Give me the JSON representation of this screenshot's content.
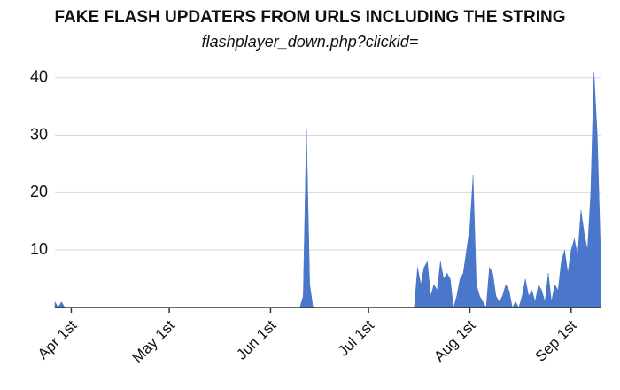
{
  "chart_data": {
    "type": "area",
    "title": "FAKE FLASH UPDATERS FROM URLS INCLUDING THE STRING",
    "subtitle": "flashplayer_down.php?clickid=",
    "color": "#4a77c9",
    "grid": true,
    "ylim": [
      0,
      41.5
    ],
    "yticks": [
      10,
      20,
      30,
      40
    ],
    "categories": [
      null,
      null,
      null,
      null,
      null,
      "Apr 1st",
      null,
      null,
      null,
      null,
      null,
      null,
      null,
      null,
      null,
      null,
      null,
      null,
      null,
      null,
      null,
      null,
      null,
      null,
      null,
      null,
      null,
      null,
      null,
      null,
      null,
      null,
      null,
      null,
      null,
      "May 1st",
      null,
      null,
      null,
      null,
      null,
      null,
      null,
      null,
      null,
      null,
      null,
      null,
      null,
      null,
      null,
      null,
      null,
      null,
      null,
      null,
      null,
      null,
      null,
      null,
      null,
      null,
      null,
      null,
      null,
      null,
      "Jun 1st",
      null,
      null,
      null,
      null,
      null,
      null,
      null,
      null,
      null,
      null,
      null,
      null,
      null,
      null,
      null,
      null,
      null,
      null,
      null,
      null,
      null,
      null,
      null,
      null,
      null,
      null,
      null,
      null,
      null,
      "Jul 1st",
      null,
      null,
      null,
      null,
      null,
      null,
      null,
      null,
      null,
      null,
      null,
      null,
      null,
      null,
      null,
      null,
      null,
      null,
      null,
      null,
      null,
      null,
      null,
      null,
      null,
      null,
      null,
      null,
      null,
      null,
      "Aug 1st",
      null,
      null,
      null,
      null,
      null,
      null,
      null,
      null,
      null,
      null,
      null,
      null,
      null,
      null,
      null,
      null,
      null,
      null,
      null,
      null,
      null,
      null,
      null,
      null,
      null,
      null,
      null,
      null,
      null,
      null,
      "Sep 1st",
      null,
      null,
      null,
      null,
      null,
      null,
      null,
      null,
      null
    ],
    "values": [
      1,
      0,
      1,
      0,
      0,
      0,
      0,
      0,
      0,
      0,
      0,
      0,
      0,
      0,
      0,
      0,
      0,
      0,
      0,
      0,
      0,
      0,
      0,
      0,
      0,
      0,
      0,
      0,
      0,
      0,
      0,
      0,
      0,
      0,
      0,
      0,
      0,
      0,
      0,
      0,
      0,
      0,
      0,
      0,
      0,
      0,
      0,
      0,
      0,
      0,
      0,
      0,
      0,
      0,
      0,
      0,
      0,
      0,
      0,
      0,
      0,
      0,
      0,
      0,
      0,
      0,
      0,
      0,
      0,
      0,
      0,
      0,
      0,
      0,
      0,
      0,
      2,
      31,
      4,
      0,
      0,
      0,
      0,
      0,
      0,
      0,
      0,
      0,
      0,
      0,
      0,
      0,
      0,
      0,
      0,
      0,
      0,
      0,
      0,
      0,
      0,
      0,
      0,
      0,
      0,
      0,
      0,
      0,
      0,
      0,
      0,
      7,
      4,
      7,
      8,
      2,
      4,
      3,
      8,
      5,
      6,
      5,
      0,
      2,
      5,
      6,
      10,
      14,
      23,
      4,
      2,
      1,
      0,
      7,
      6,
      2,
      1,
      2,
      4,
      3,
      0,
      1,
      0,
      2,
      5,
      2,
      3,
      1,
      4,
      3,
      1,
      6,
      1,
      4,
      3,
      8,
      10,
      6,
      10,
      12,
      9,
      17,
      13,
      10,
      20,
      41,
      30,
      10
    ]
  }
}
